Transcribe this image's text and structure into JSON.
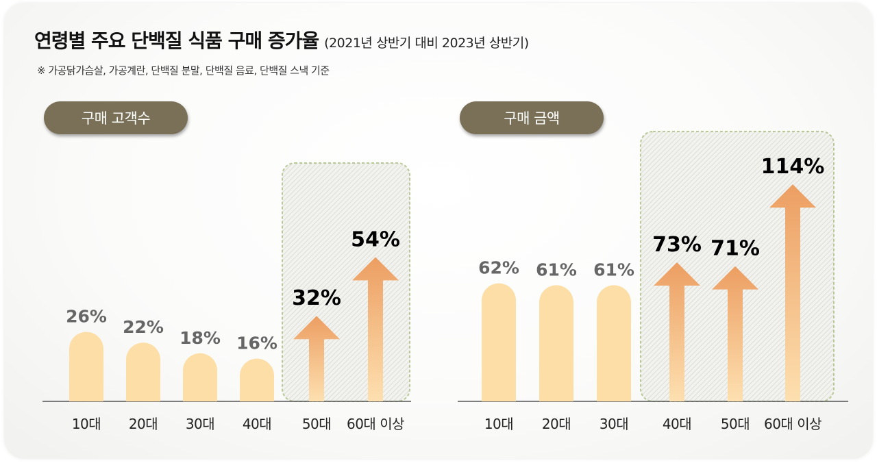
{
  "title": "연령별 주요 단백질 식품 구매 증가율",
  "subtitle": "(2021년 상반기 대비 2023년 상반기)",
  "footnote": "※ 가공닭가슴살, 가공계란, 단백질 분말, 단백질 음료, 단백질 스낵 기준",
  "colors": {
    "bar": "#fddea6",
    "arrow_top": "#ec9e62",
    "arrow_bottom": "#fde0b0",
    "label_normal": "#666666",
    "label_highlight": "#000000",
    "pill": "#7a7057",
    "highlight_border": "#b8c898"
  },
  "chart_data": [
    {
      "type": "bar",
      "title": "구매 고객수",
      "categories": [
        "10대",
        "20대",
        "30대",
        "40대",
        "50대",
        "60대 이상"
      ],
      "values": [
        26,
        22,
        18,
        16,
        32,
        54
      ],
      "value_labels": [
        "26%",
        "22%",
        "18%",
        "16%",
        "32%",
        "54%"
      ],
      "highlighted": [
        false,
        false,
        false,
        false,
        true,
        true
      ]
    },
    {
      "type": "bar",
      "title": "구매 금액",
      "categories": [
        "10대",
        "20대",
        "30대",
        "40대",
        "50대",
        "60대 이상"
      ],
      "values": [
        62,
        61,
        61,
        73,
        71,
        114
      ],
      "value_labels": [
        "62%",
        "61%",
        "61%",
        "73%",
        "71%",
        "114%"
      ],
      "highlighted": [
        false,
        false,
        false,
        true,
        true,
        true
      ]
    }
  ]
}
